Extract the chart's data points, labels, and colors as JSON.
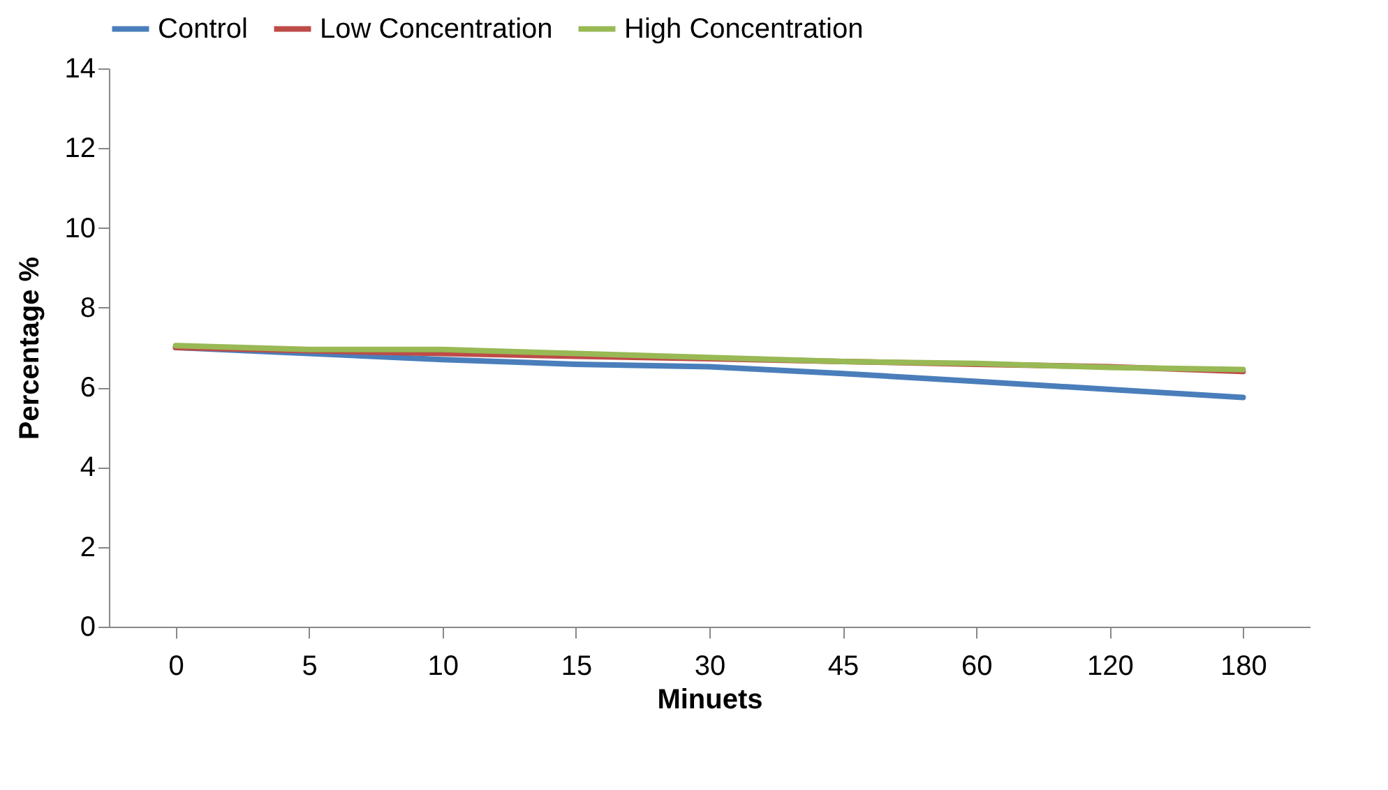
{
  "chart_data": {
    "type": "line",
    "xlabel": "Minuets",
    "ylabel": "Percentage %",
    "categories": [
      "0",
      "5",
      "10",
      "15",
      "30",
      "45",
      "60",
      "120",
      "180"
    ],
    "series": [
      {
        "name": "Control",
        "color": "#4a7ebb",
        "values": [
          7.0,
          6.85,
          6.7,
          6.58,
          6.52,
          6.35,
          6.15,
          5.95,
          5.75
        ]
      },
      {
        "name": "Low Concentration",
        "color": "#be4b48",
        "values": [
          7.0,
          6.92,
          6.85,
          6.78,
          6.72,
          6.65,
          6.58,
          6.52,
          6.4
        ]
      },
      {
        "name": "High Concentration",
        "color": "#98b954",
        "values": [
          7.05,
          6.95,
          6.95,
          6.85,
          6.75,
          6.65,
          6.6,
          6.5,
          6.45
        ]
      }
    ],
    "ylim": [
      0,
      14
    ],
    "yticks": [
      0,
      2,
      4,
      6,
      8,
      10,
      12,
      14
    ],
    "grid": false,
    "legend": "top",
    "marker": "none",
    "line_style": "solid"
  }
}
